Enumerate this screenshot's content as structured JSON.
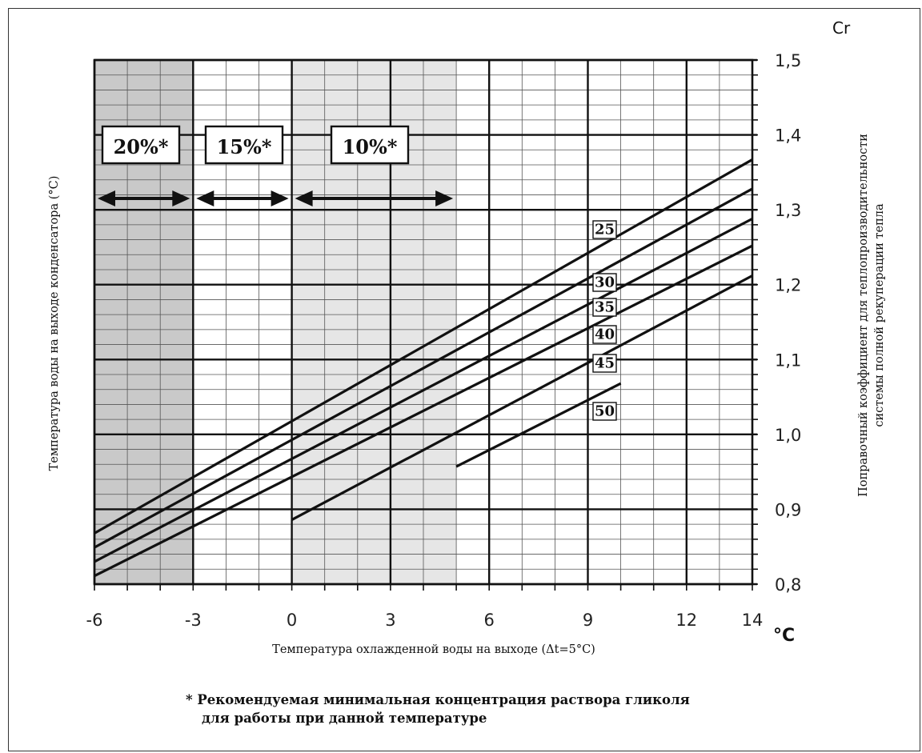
{
  "chart_data": {
    "type": "line",
    "xlabel": "Температура охлажденной воды на выходе (Δt=5°C)",
    "x_unit": "°C",
    "ylabel_left": "Температура воды на выходе конденсатора (°C)",
    "ylabel_right_line1": "Поправочный коэффициент для теплопроизводительности",
    "ylabel_right_line2": "системы полной рекуперации тепла",
    "y_axis_title": "Cr",
    "xlim": [
      -6,
      14
    ],
    "ylim": [
      0.8,
      1.5
    ],
    "x_ticks": [
      "-6",
      "-3",
      "0",
      "3",
      "6",
      "9",
      "12",
      "14"
    ],
    "y_ticks": [
      "0,8",
      "0,9",
      "1,0",
      "1,1",
      "1,2",
      "1,3",
      "1,4",
      "1,5"
    ],
    "grid": true,
    "zones": [
      {
        "label": "20%*",
        "x_from": -6,
        "x_to": -3,
        "shade": "#c9c9c9"
      },
      {
        "label": "15%*",
        "x_from": -3,
        "x_to": 0,
        "shade": "#ffffff"
      },
      {
        "label": "10%*",
        "x_from": 0,
        "x_to": 5,
        "shade": "#e6e6e6"
      }
    ],
    "series": [
      {
        "name": "25",
        "x": [
          -6,
          14
        ],
        "y": [
          0.868,
          1.367
        ]
      },
      {
        "name": "30",
        "x": [
          -6,
          14
        ],
        "y": [
          0.849,
          1.328
        ]
      },
      {
        "name": "35",
        "x": [
          -6,
          14
        ],
        "y": [
          0.83,
          1.288
        ]
      },
      {
        "name": "40",
        "x": [
          -6,
          14
        ],
        "y": [
          0.811,
          1.252
        ]
      },
      {
        "name": "45",
        "x": [
          0,
          14
        ],
        "y": [
          0.886,
          1.212
        ]
      },
      {
        "name": "50",
        "x": [
          5,
          10
        ],
        "y": [
          0.957,
          1.068
        ]
      }
    ]
  },
  "footnote": {
    "line1": "* Рекомендуемая минимальная концентрация раствора гликоля",
    "line2": "для работы при данной температуре"
  }
}
